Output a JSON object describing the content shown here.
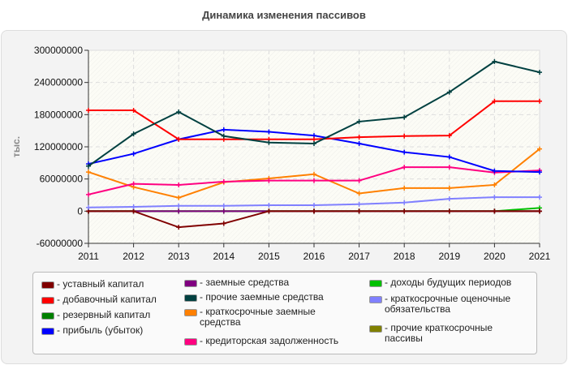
{
  "chart_data": {
    "type": "line",
    "title": "Динамика изменения пассивов",
    "ylabel": "тыс.",
    "xlabel": "",
    "x": [
      2011,
      2012,
      2013,
      2014,
      2015,
      2016,
      2017,
      2018,
      2019,
      2020,
      2021
    ],
    "ylim": [
      -60000000,
      300000000
    ],
    "yticks": [
      -60000000,
      0,
      60000000,
      120000000,
      180000000,
      240000000,
      300000000
    ],
    "grid": true,
    "legend_placement": "bottom",
    "series": [
      {
        "name": "уставный капитал",
        "color": "#800000",
        "values": [
          0,
          0,
          -30000000,
          -23000000,
          0,
          0,
          0,
          0,
          0,
          0,
          0
        ]
      },
      {
        "name": "добавочный капитал",
        "color": "#ff0000",
        "values": [
          188000000,
          188000000,
          134000000,
          134000000,
          134000000,
          134000000,
          138000000,
          140000000,
          141000000,
          205000000,
          205000000
        ]
      },
      {
        "name": "резервный капитал",
        "color": "#008000",
        "values": [
          0,
          0,
          0,
          0,
          0,
          0,
          0,
          0,
          0,
          0,
          0
        ]
      },
      {
        "name": "прибыль (убыток)",
        "color": "#0000ff",
        "values": [
          88000000,
          107000000,
          134000000,
          152000000,
          148000000,
          141000000,
          126000000,
          110000000,
          101000000,
          75000000,
          73000000
        ]
      },
      {
        "name": "заемные средства",
        "color": "#800080",
        "values": [
          0,
          0,
          0,
          0,
          0,
          0,
          0,
          0,
          0,
          0,
          0
        ]
      },
      {
        "name": "прочие заемные средства",
        "color": "#004040",
        "values": [
          84000000,
          144000000,
          185000000,
          140000000,
          128000000,
          126000000,
          167000000,
          175000000,
          222000000,
          279000000,
          259000000
        ]
      },
      {
        "name": "краткосрочные заемные средства",
        "color": "#ff8000",
        "values": [
          73000000,
          45000000,
          25000000,
          54000000,
          61000000,
          69000000,
          33000000,
          43000000,
          43000000,
          49000000,
          116000000
        ]
      },
      {
        "name": "кредиторская задолженность",
        "color": "#ff0080",
        "values": [
          31000000,
          51000000,
          49000000,
          55000000,
          57000000,
          57000000,
          57000000,
          82000000,
          82000000,
          72000000,
          76000000
        ]
      },
      {
        "name": "доходы будущих периодов",
        "color": "#00c000",
        "values": [
          0,
          0,
          0,
          0,
          0,
          0,
          0,
          0,
          0,
          0,
          6000000
        ]
      },
      {
        "name": "краткосрочные оценочные обязательства",
        "color": "#8080ff",
        "values": [
          7000000,
          8000000,
          10000000,
          10000000,
          11000000,
          11000000,
          13000000,
          16000000,
          23000000,
          26000000,
          26000000
        ]
      },
      {
        "name": "прочие краткосрочные пассивы",
        "color": "#808000",
        "values": [
          0,
          0,
          0,
          0,
          0,
          0,
          0,
          0,
          0,
          0,
          0
        ]
      }
    ]
  }
}
